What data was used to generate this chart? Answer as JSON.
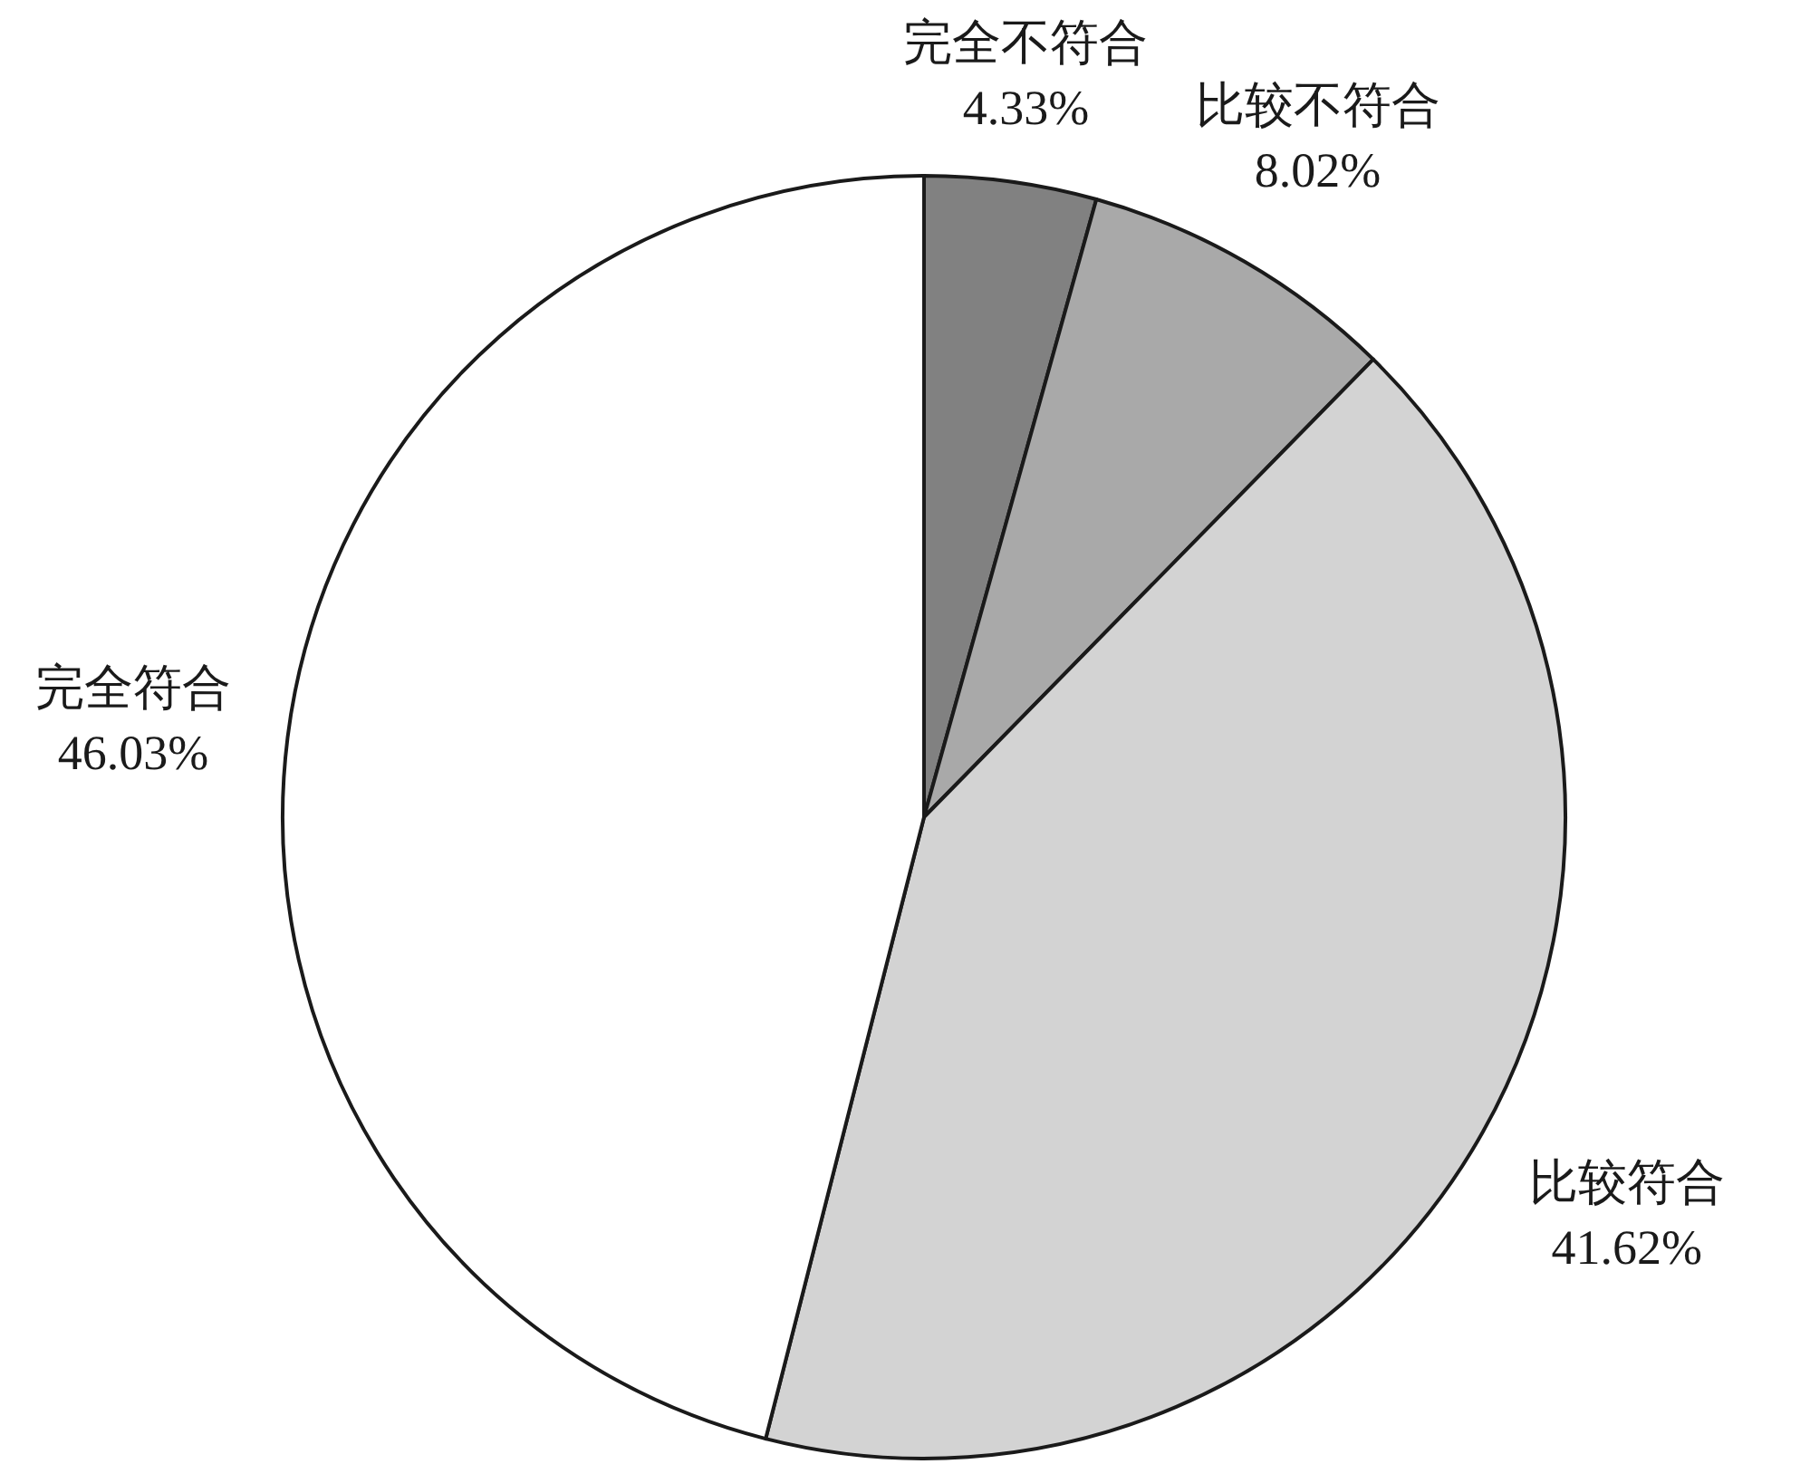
{
  "chart_data": {
    "type": "pie",
    "categories": [
      "完全不符合",
      "比较不符合",
      "比较符合",
      "完全符合"
    ],
    "values": [
      4.33,
      8.02,
      41.62,
      46.03
    ],
    "colors": [
      "#818181",
      "#a9a9a9",
      "#d3d3d3",
      "#ffffff"
    ],
    "value_labels": [
      "4.33%",
      "8.02%",
      "41.62%",
      "46.03%"
    ]
  }
}
